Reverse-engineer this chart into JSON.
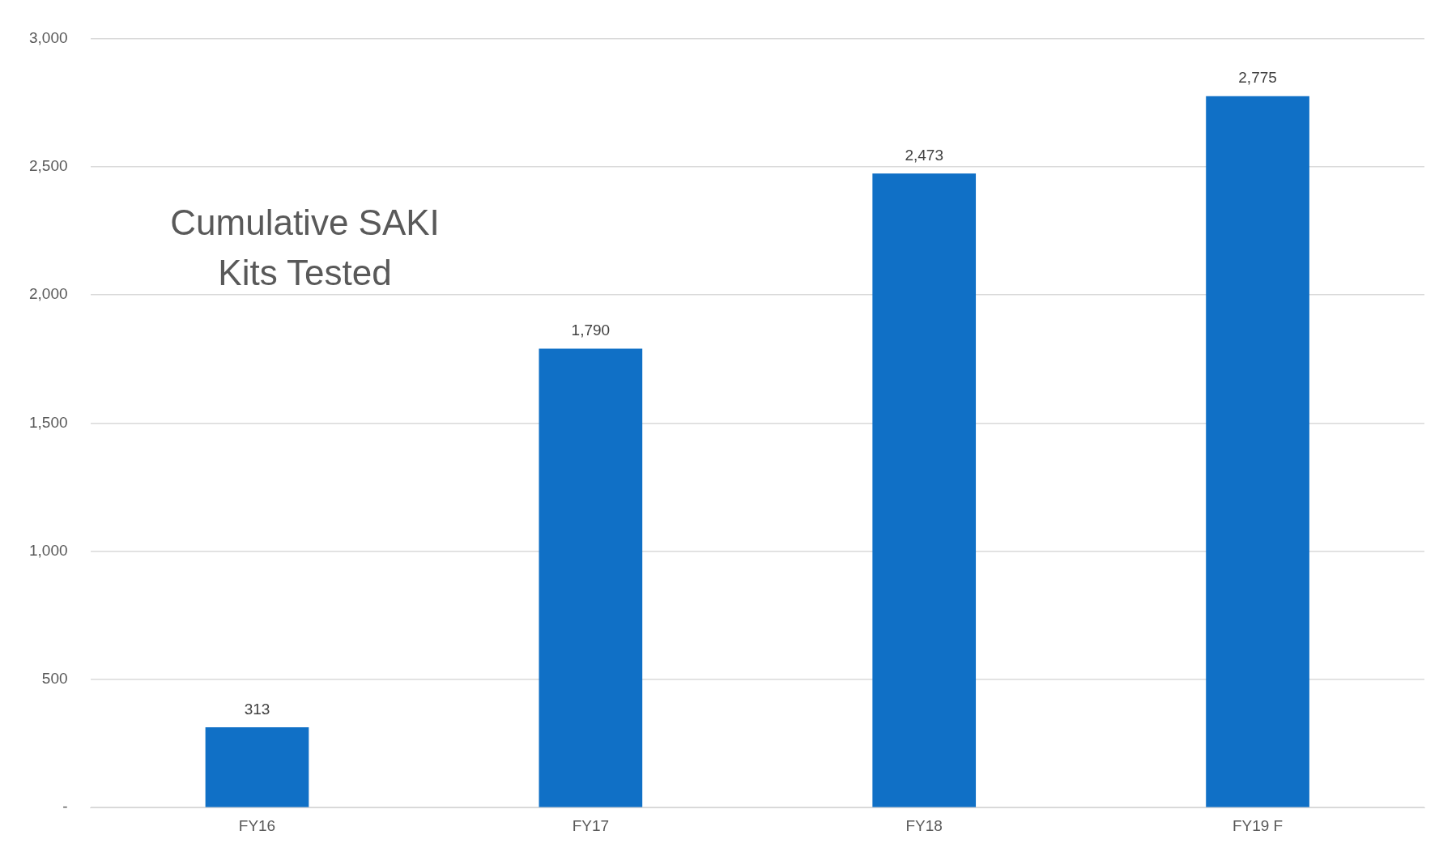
{
  "chart_data": {
    "type": "bar",
    "title": "Cumulative SAKI Kits Tested",
    "categories": [
      "FY16",
      "FY17",
      "FY18",
      "FY19 F"
    ],
    "values": [
      313,
      1790,
      2473,
      2775
    ],
    "value_labels": [
      "313",
      "1,790",
      "2,473",
      "2,775"
    ],
    "color": "#1070c6",
    "ylim": [
      0,
      3000
    ],
    "yticks": [
      {
        "value": 0,
        "label": "-"
      },
      500,
      {
        "value": 1000,
        "label": "1,000"
      },
      {
        "value": 1500,
        "label": "1,500"
      },
      {
        "value": 2000,
        "label": "2,000"
      },
      {
        "value": 2500,
        "label": "2,500"
      },
      {
        "value": 3000,
        "label": "3,000"
      }
    ],
    "grid": "y",
    "legend": false
  }
}
